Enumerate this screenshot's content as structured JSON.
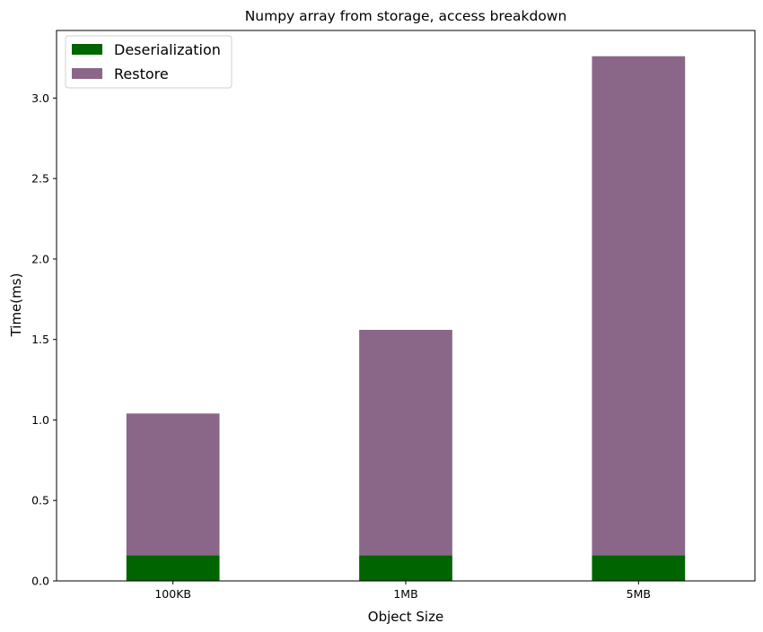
{
  "chart_data": {
    "type": "bar",
    "stacked": true,
    "title": "Numpy array from storage, access breakdown",
    "xlabel": "Object Size",
    "ylabel": "Time(ms)",
    "categories": [
      "100KB",
      "1MB",
      "5MB"
    ],
    "series": [
      {
        "name": "Deserialization",
        "color": "#006400",
        "values": [
          0.16,
          0.16,
          0.16
        ]
      },
      {
        "name": "Restore",
        "color": "#8a6788",
        "values": [
          0.88,
          1.4,
          3.1
        ]
      }
    ],
    "ylim": [
      0,
      3.42
    ],
    "yticks": [
      0.0,
      0.5,
      1.0,
      1.5,
      2.0,
      2.5,
      3.0
    ],
    "ytick_labels": [
      "0.0",
      "0.5",
      "1.0",
      "1.5",
      "2.0",
      "2.5",
      "3.0"
    ],
    "grid": false,
    "legend_position": "top-left"
  }
}
